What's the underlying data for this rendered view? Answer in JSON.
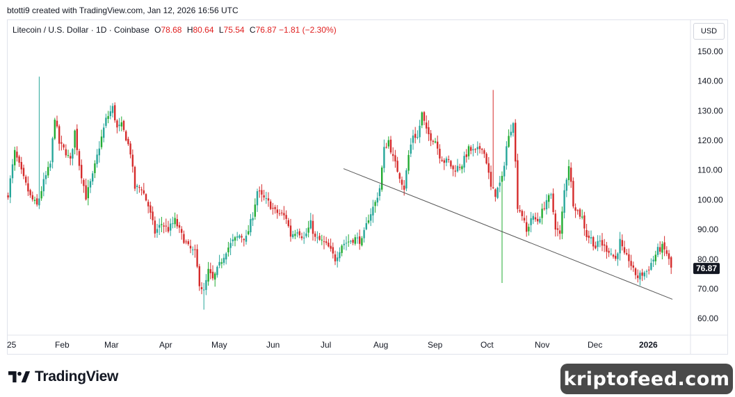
{
  "caption": "btotti9 created with TradingView.com, Jan 12, 2026 16:56 UTC",
  "legend": {
    "symbol": "Litecoin / U.S. Dollar · 1D · Coinbase",
    "open_key": "O",
    "open": "78.68",
    "high_key": "H",
    "high": "80.64",
    "low_key": "L",
    "low": "75.54",
    "close_key": "C",
    "close": "76.87",
    "change": "−1.81 (−2.30%)"
  },
  "currency_button": "USD",
  "brand": "TradingView",
  "watermark": "kriptofeed.com",
  "colors": {
    "up": "#26a69a",
    "up_bright": "#22ab32",
    "down": "#d52b2b",
    "trendline": "#555555",
    "price_tag": "#131722"
  },
  "chart_data": {
    "type": "candlestick",
    "title": "Litecoin / U.S. Dollar · 1D · Coinbase",
    "ylim": [
      55,
      158
    ],
    "y_ticks": [
      "150.00",
      "140.00",
      "130.00",
      "120.00",
      "110.00",
      "100.00",
      "90.00",
      "80.00",
      "70.00",
      "60.00"
    ],
    "x_ticks": [
      "25",
      "Feb",
      "Mar",
      "Apr",
      "May",
      "Jun",
      "Jul",
      "Aug",
      "Sep",
      "Oct",
      "Nov",
      "Dec",
      "2026"
    ],
    "last_price": "76.87",
    "grid": false,
    "trendline": {
      "start": [
        "Jul 18, 2025",
        110.5
      ],
      "end": [
        "Jan 12, 2026",
        66.5
      ]
    },
    "anchors": [
      [
        0,
        102
      ],
      [
        3,
        116
      ],
      [
        7,
        107
      ],
      [
        10,
        101
      ],
      [
        13,
        98
      ],
      [
        16,
        106
      ],
      [
        19,
        112
      ],
      [
        21,
        128
      ],
      [
        23,
        119
      ],
      [
        26,
        116
      ],
      [
        28,
        113
      ],
      [
        30,
        123
      ],
      [
        32,
        112
      ],
      [
        35,
        101
      ],
      [
        38,
        108
      ],
      [
        41,
        118
      ],
      [
        44,
        127
      ],
      [
        47,
        131
      ],
      [
        49,
        124
      ],
      [
        51,
        125
      ],
      [
        53,
        121
      ],
      [
        55,
        116
      ],
      [
        57,
        104
      ],
      [
        60,
        104
      ],
      [
        63,
        98
      ],
      [
        66,
        89
      ],
      [
        69,
        92
      ],
      [
        72,
        90
      ],
      [
        75,
        93
      ],
      [
        78,
        88
      ],
      [
        81,
        84
      ],
      [
        84,
        82
      ],
      [
        86,
        72
      ],
      [
        88,
        69
      ],
      [
        90,
        76
      ],
      [
        92,
        73
      ],
      [
        95,
        78
      ],
      [
        98,
        83
      ],
      [
        101,
        86
      ],
      [
        104,
        88
      ],
      [
        107,
        87
      ],
      [
        110,
        95
      ],
      [
        112,
        103
      ],
      [
        114,
        101
      ],
      [
        117,
        99
      ],
      [
        120,
        96
      ],
      [
        123,
        95
      ],
      [
        125,
        94
      ],
      [
        127,
        88
      ],
      [
        130,
        90
      ],
      [
        133,
        87
      ],
      [
        136,
        92
      ],
      [
        138,
        87
      ],
      [
        141,
        86
      ],
      [
        144,
        84
      ],
      [
        147,
        80
      ],
      [
        150,
        85
      ],
      [
        153,
        86
      ],
      [
        156,
        87
      ],
      [
        159,
        86
      ],
      [
        162,
        94
      ],
      [
        165,
        99
      ],
      [
        167,
        104
      ],
      [
        169,
        117
      ],
      [
        171,
        120
      ],
      [
        173,
        114
      ],
      [
        176,
        108
      ],
      [
        178,
        104
      ],
      [
        180,
        115
      ],
      [
        182,
        122
      ],
      [
        184,
        121
      ],
      [
        186,
        129
      ],
      [
        188,
        123
      ],
      [
        190,
        121
      ],
      [
        192,
        120
      ],
      [
        194,
        115
      ],
      [
        196,
        113
      ],
      [
        198,
        113
      ],
      [
        200,
        110
      ],
      [
        202,
        111
      ],
      [
        204,
        112
      ],
      [
        207,
        117
      ],
      [
        210,
        116
      ],
      [
        213,
        118
      ],
      [
        215,
        113
      ],
      [
        217,
        104
      ],
      [
        219,
        102
      ],
      [
        222,
        107
      ],
      [
        224,
        118
      ],
      [
        227,
        127
      ],
      [
        229,
        98
      ],
      [
        231,
        95
      ],
      [
        233,
        89
      ],
      [
        235,
        94
      ],
      [
        238,
        93
      ],
      [
        240,
        96
      ],
      [
        242,
        100
      ],
      [
        244,
        101
      ],
      [
        246,
        91
      ],
      [
        248,
        88
      ],
      [
        250,
        103
      ],
      [
        252,
        112
      ],
      [
        254,
        99
      ],
      [
        256,
        96
      ],
      [
        258,
        94
      ],
      [
        260,
        88
      ],
      [
        262,
        87
      ],
      [
        264,
        84
      ],
      [
        266,
        86
      ],
      [
        268,
        84
      ],
      [
        270,
        83
      ],
      [
        273,
        80
      ],
      [
        275,
        86
      ],
      [
        277,
        81
      ],
      [
        279,
        80
      ],
      [
        281,
        76
      ],
      [
        283,
        74
      ],
      [
        285,
        75
      ],
      [
        287,
        76
      ],
      [
        290,
        80
      ],
      [
        292,
        83
      ],
      [
        294,
        84
      ],
      [
        296,
        82
      ],
      [
        298,
        77
      ]
    ]
  }
}
